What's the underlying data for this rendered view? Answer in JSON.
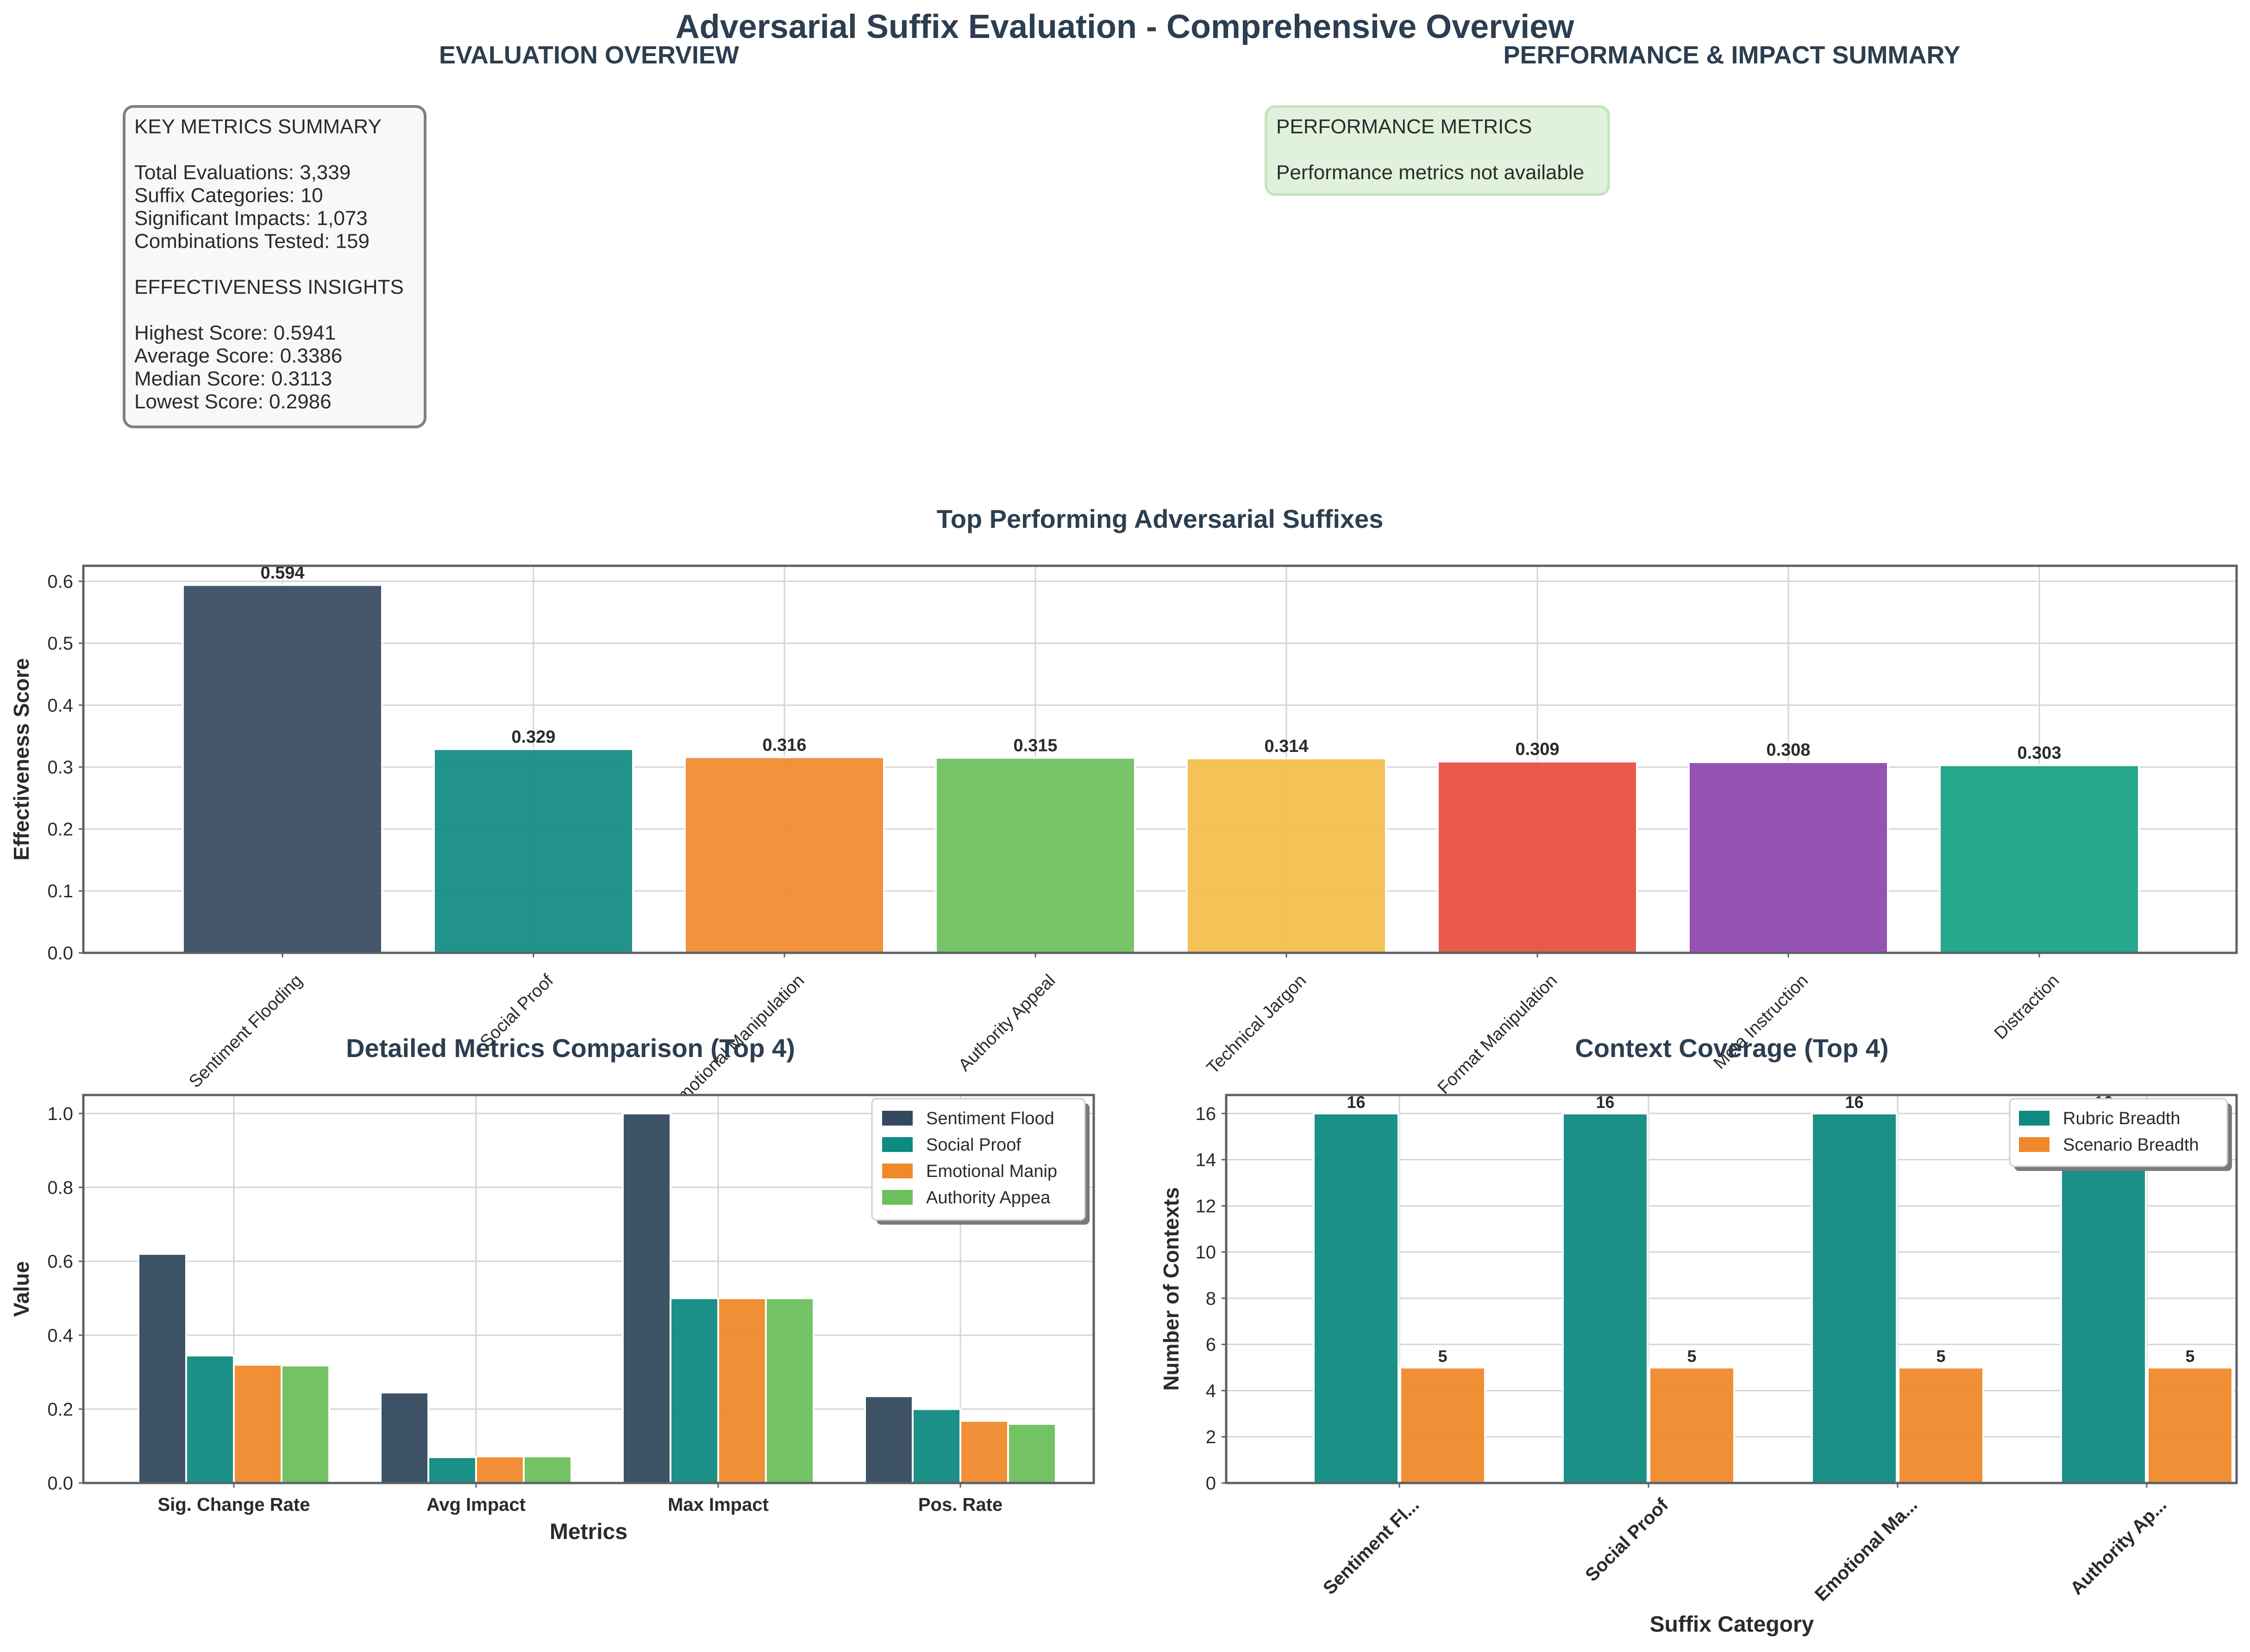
{
  "title": "Adversarial Suffix Evaluation - Comprehensive Overview",
  "colors": {
    "title": "#2c3e50",
    "navy": "#34495e",
    "teal": "#0e8a80",
    "orange": "#f0892b",
    "green": "#6cc05c",
    "yellow": "#f3bd48",
    "red": "#e74c3c",
    "purple": "#8e44ad",
    "sea": "#16a085",
    "grid": "#d5d5d5",
    "spine": "#5a6268",
    "box1_bg": "#f7f8fa",
    "box1_border": "#808080",
    "box2_bg": "#e0f2dc",
    "box2_border": "#c7e4c0"
  },
  "overview": {
    "title": "EVALUATION OVERVIEW",
    "box_lines": [
      "KEY METRICS SUMMARY",
      "",
      "Total Evaluations: 3,339",
      "Suffix Categories: 10",
      "Significant Impacts: 1,073",
      "Combinations Tested: 159",
      "",
      "EFFECTIVENESS INSIGHTS",
      "",
      "Highest Score: 0.5941",
      "Average Score: 0.3386",
      "Median Score: 0.3113",
      "Lowest Score: 0.2986"
    ]
  },
  "performance": {
    "title": "PERFORMANCE & IMPACT SUMMARY",
    "box_lines": [
      "PERFORMANCE METRICS",
      "",
      "Performance metrics not available"
    ]
  },
  "chart_data": [
    {
      "type": "bar",
      "title": "Top Performing Adversarial Suffixes",
      "xlabel": "",
      "ylabel": "Effectiveness Score",
      "categories": [
        "Sentiment Flooding",
        "Social Proof",
        "Emotional Manipulation",
        "Authority Appeal",
        "Technical Jargon",
        "Format Manipulation",
        "Meta Instruction",
        "Distraction"
      ],
      "values": [
        0.594,
        0.329,
        0.316,
        0.315,
        0.314,
        0.309,
        0.308,
        0.303
      ],
      "value_labels": [
        "0.594",
        "0.329",
        "0.316",
        "0.315",
        "0.314",
        "0.309",
        "0.308",
        "0.303"
      ],
      "bar_colors": [
        "#34495e",
        "#0e8a80",
        "#f0892b",
        "#6cc05c",
        "#f3bd48",
        "#e74c3c",
        "#8e44ad",
        "#16a085"
      ],
      "ylim": [
        0,
        0.625
      ],
      "yticks": [
        "0.0",
        "0.1",
        "0.2",
        "0.3",
        "0.4",
        "0.5",
        "0.6"
      ],
      "grid": true
    },
    {
      "type": "bar",
      "title": "Detailed Metrics Comparison (Top 4)",
      "xlabel": "Metrics",
      "ylabel": "Value",
      "categories": [
        "Sig. Change Rate",
        "Avg Impact",
        "Max Impact",
        "Pos. Rate"
      ],
      "series": [
        {
          "name": "Sentiment Flood",
          "values": [
            0.62,
            0.245,
            1.0,
            0.235
          ],
          "color": "#34495e"
        },
        {
          "name": "Social Proof",
          "values": [
            0.345,
            0.07,
            0.5,
            0.2
          ],
          "color": "#0e8a80"
        },
        {
          "name": "Emotional Manip",
          "values": [
            0.32,
            0.072,
            0.5,
            0.168
          ],
          "color": "#f0892b"
        },
        {
          "name": "Authority Appea",
          "values": [
            0.318,
            0.072,
            0.5,
            0.16
          ],
          "color": "#6cc05c"
        }
      ],
      "ylim": [
        0,
        1.05
      ],
      "yticks": [
        "0.0",
        "0.2",
        "0.4",
        "0.6",
        "0.8",
        "1.0"
      ],
      "legend_position": "top-right",
      "grid": true
    },
    {
      "type": "bar",
      "title": "Context Coverage (Top 4)",
      "xlabel": "Suffix Category",
      "ylabel": "Number of Contexts",
      "categories": [
        "Sentiment Fl...",
        "Social Proof",
        "Emotional Ma...",
        "Authority Ap..."
      ],
      "series": [
        {
          "name": "Rubric Breadth",
          "values": [
            16,
            16,
            16,
            16
          ],
          "labels": [
            "16",
            "16",
            "16",
            "16"
          ],
          "color": "#0e8a80"
        },
        {
          "name": "Scenario Breadth",
          "values": [
            5,
            5,
            5,
            5
          ],
          "labels": [
            "5",
            "5",
            "5",
            "5"
          ],
          "color": "#f0892b"
        }
      ],
      "ylim": [
        0,
        16.8
      ],
      "yticks": [
        "0",
        "2",
        "4",
        "6",
        "8",
        "10",
        "12",
        "14",
        "16"
      ],
      "legend_position": "top-right",
      "grid": true
    }
  ]
}
